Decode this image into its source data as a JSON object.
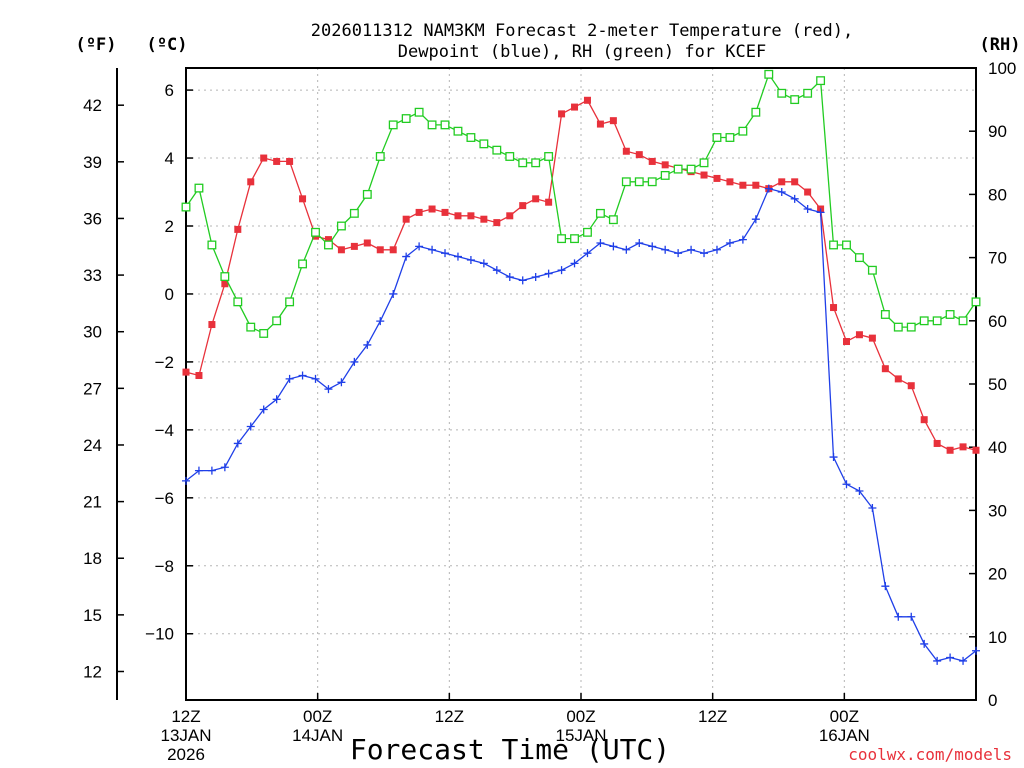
{
  "chart_data": {
    "type": "line",
    "title_line1": "2026011312 NAM3KM Forecast 2-meter Temperature (red),",
    "title_line2": "Dewpoint (blue), RH (green) for KCEF",
    "xlabel": "Forecast Time (UTC)",
    "credit": "coolwx.com/models",
    "units": {
      "fahrenheit": "(ºF)",
      "celsius": "(ºC)",
      "rh": "(RH)"
    },
    "x_range": [
      0,
      36
    ],
    "x_ticks": [
      {
        "hour": 0,
        "line1": "12Z",
        "line2": "13JAN",
        "line3": "2026"
      },
      {
        "hour": 6,
        "line1": "00Z",
        "line2": "14JAN",
        "line3": ""
      },
      {
        "hour": 12,
        "line1": "12Z",
        "line2": "",
        "line3": ""
      },
      {
        "hour": 18,
        "line1": "00Z",
        "line2": "15JAN",
        "line3": ""
      },
      {
        "hour": 24,
        "line1": "12Z",
        "line2": "",
        "line3": ""
      },
      {
        "hour": 30,
        "line1": "00Z",
        "line2": "16JAN",
        "line3": ""
      }
    ],
    "celsius_range": [
      -11.95,
      6.65
    ],
    "celsius_ticks": [
      "6",
      "4",
      "2",
      "0",
      "−2",
      "−4",
      "−6",
      "−8",
      "−10"
    ],
    "celsius_tick_values": [
      6,
      4,
      2,
      0,
      -2,
      -4,
      -6,
      -8,
      -10
    ],
    "fahrenheit_ticks": [
      "42",
      "39",
      "36",
      "33",
      "30",
      "27",
      "24",
      "21",
      "18",
      "15",
      "12"
    ],
    "fahrenheit_tick_values": [
      42,
      39,
      36,
      33,
      30,
      27,
      24,
      21,
      18,
      15,
      12
    ],
    "rh_range": [
      0,
      100
    ],
    "rh_ticks": [
      "100",
      "90",
      "80",
      "70",
      "60",
      "50",
      "40",
      "30",
      "20",
      "10",
      "0"
    ],
    "rh_tick_values": [
      100,
      90,
      80,
      70,
      60,
      50,
      40,
      30,
      20,
      10,
      0
    ],
    "series": [
      {
        "name": "2-meter Temperature",
        "unit": "C",
        "color": "#e8313b",
        "marker": "filled-square",
        "values": [
          -2.3,
          -2.4,
          -0.9,
          0.3,
          1.9,
          3.3,
          4.0,
          3.9,
          3.9,
          2.8,
          1.7,
          1.6,
          1.3,
          1.4,
          1.5,
          1.3,
          1.3,
          2.2,
          2.4,
          2.5,
          2.4,
          2.3,
          2.3,
          2.2,
          2.1,
          2.3,
          2.6,
          2.8,
          2.7,
          5.3,
          5.5,
          5.7,
          5.0,
          5.1,
          4.2,
          4.1,
          3.9,
          3.8,
          3.7,
          3.6,
          3.5,
          3.4,
          3.3,
          3.2,
          3.2,
          3.1,
          3.3,
          3.3,
          3.0,
          2.5,
          -0.4,
          -1.4,
          -1.2,
          -1.3,
          -2.2,
          -2.5,
          -2.7,
          -3.7,
          -4.4,
          -4.6,
          -4.5,
          -4.6
        ]
      },
      {
        "name": "Dewpoint",
        "unit": "C",
        "color": "#1f3fe8",
        "marker": "plus",
        "values": [
          -5.5,
          -5.2,
          -5.2,
          -5.1,
          -4.4,
          -3.9,
          -3.4,
          -3.1,
          -2.5,
          -2.4,
          -2.5,
          -2.8,
          -2.6,
          -2.0,
          -1.5,
          -0.8,
          0.0,
          1.1,
          1.4,
          1.3,
          1.2,
          1.1,
          1.0,
          0.9,
          0.7,
          0.5,
          0.4,
          0.5,
          0.6,
          0.7,
          0.9,
          1.2,
          1.5,
          1.4,
          1.3,
          1.5,
          1.4,
          1.3,
          1.2,
          1.3,
          1.2,
          1.3,
          1.5,
          1.6,
          2.2,
          3.1,
          3.0,
          2.8,
          2.5,
          2.4,
          -4.8,
          -5.6,
          -5.8,
          -6.3,
          -8.6,
          -9.5,
          -9.5,
          -10.3,
          -10.8,
          -10.7,
          -10.8,
          -10.5
        ]
      },
      {
        "name": "RH",
        "unit": "%",
        "color": "#22cc22",
        "marker": "open-square",
        "values": [
          78,
          81,
          72,
          67,
          63,
          59,
          58,
          60,
          63,
          69,
          74,
          72,
          75,
          77,
          80,
          86,
          91,
          92,
          93,
          91,
          91,
          90,
          89,
          88,
          87,
          86,
          85,
          85,
          86,
          73,
          73,
          74,
          77,
          76,
          82,
          82,
          82,
          83,
          84,
          84,
          85,
          89,
          89,
          90,
          93,
          99,
          96,
          95,
          96,
          98,
          72,
          72,
          70,
          68,
          61,
          59,
          59,
          60,
          60,
          61,
          60,
          63
        ]
      }
    ]
  }
}
